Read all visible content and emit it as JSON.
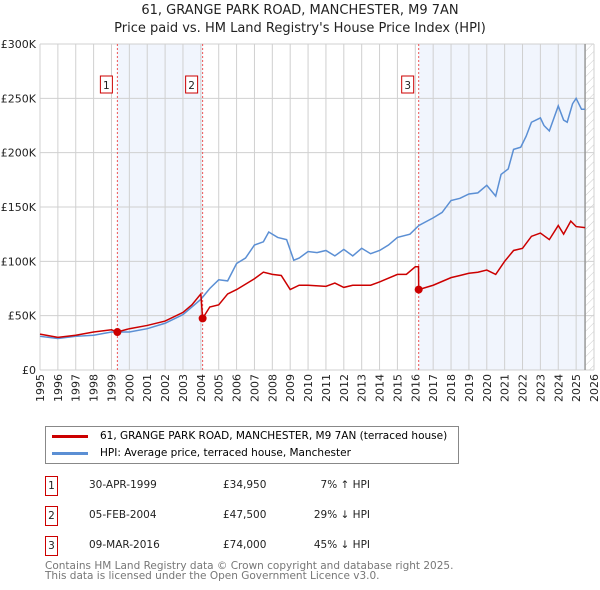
{
  "chart_data": {
    "type": "line",
    "title": "61, GRANGE PARK ROAD, MANCHESTER, M9 7AN",
    "subtitle": "Price paid vs. HM Land Registry's House Price Index (HPI)",
    "xlim": [
      1995,
      2026
    ],
    "ylim": [
      0,
      300000
    ],
    "x_ticks": [
      "1995",
      "1996",
      "1997",
      "1998",
      "1999",
      "2000",
      "2001",
      "2002",
      "2003",
      "2004",
      "2005",
      "2006",
      "2007",
      "2008",
      "2009",
      "2010",
      "2011",
      "2012",
      "2013",
      "2014",
      "2015",
      "2016",
      "2017",
      "2018",
      "2019",
      "2020",
      "2021",
      "2022",
      "2023",
      "2024",
      "2025",
      "2026"
    ],
    "y_ticks": [
      {
        "v": 0,
        "label": "£0"
      },
      {
        "v": 50000,
        "label": "£50K"
      },
      {
        "v": 100000,
        "label": "£100K"
      },
      {
        "v": 150000,
        "label": "£150K"
      },
      {
        "v": 200000,
        "label": "£200K"
      },
      {
        "v": 250000,
        "label": "£250K"
      },
      {
        "v": 300000,
        "label": "£300K"
      }
    ],
    "shaded_ranges": [
      [
        1999.33,
        2004.1
      ],
      [
        2016.19,
        2025.5
      ]
    ],
    "data_end": 2025.5,
    "series": [
      {
        "name": "61, GRANGE PARK ROAD, MANCHESTER, M9 7AN (terraced house)",
        "color": "#cc0000",
        "x": [
          1995,
          1996,
          1997,
          1998,
          1999,
          1999.33,
          2000,
          2001,
          2002,
          2003,
          2003.5,
          2004,
          2004.1,
          2004.5,
          2005,
          2005.5,
          2006,
          2007,
          2007.5,
          2008,
          2008.5,
          2009,
          2009.5,
          2010,
          2011,
          2011.5,
          2012,
          2012.5,
          2013,
          2013.5,
          2014,
          2015,
          2015.5,
          2016,
          2016.18,
          2016.19,
          2017,
          2018,
          2018.5,
          2019,
          2019.5,
          2020,
          2020.5,
          2021,
          2021.5,
          2022,
          2022.5,
          2023,
          2023.5,
          2024,
          2024.3,
          2024.7,
          2025,
          2025.5
        ],
        "y": [
          33000,
          30000,
          32000,
          35000,
          37000,
          34950,
          38000,
          41000,
          45000,
          53000,
          60000,
          70000,
          47500,
          58000,
          60000,
          70000,
          74000,
          84000,
          90000,
          88000,
          87000,
          74000,
          78000,
          78000,
          77000,
          80000,
          76000,
          78000,
          78000,
          78000,
          81000,
          88000,
          88000,
          95000,
          95000,
          74000,
          78000,
          85000,
          87000,
          89000,
          90000,
          92000,
          88000,
          100000,
          110000,
          112000,
          123000,
          126000,
          120000,
          133000,
          125000,
          137000,
          132000,
          131000
        ]
      },
      {
        "name": "HPI: Average price, terraced house, Manchester",
        "color": "#5b8fd4",
        "x": [
          1995,
          1996,
          1997,
          1998,
          1999,
          2000,
          2001,
          2002,
          2003,
          2004,
          2004.5,
          2005,
          2005.5,
          2006,
          2006.5,
          2007,
          2007.5,
          2007.8,
          2008.3,
          2008.8,
          2009.2,
          2009.5,
          2010,
          2010.5,
          2011,
          2011.5,
          2012,
          2012.5,
          2013,
          2013.5,
          2014,
          2014.5,
          2015,
          2015.7,
          2016.2,
          2017,
          2017.5,
          2018,
          2018.5,
          2019,
          2019.5,
          2020,
          2020.5,
          2020.8,
          2021.2,
          2021.5,
          2021.9,
          2022.2,
          2022.5,
          2023,
          2023.2,
          2023.5,
          2024,
          2024.3,
          2024.5,
          2024.8,
          2025,
          2025.3,
          2025.5
        ],
        "y": [
          31000,
          29000,
          31000,
          32000,
          35000,
          35000,
          38000,
          43000,
          51000,
          65000,
          75000,
          83000,
          82000,
          98000,
          103000,
          115000,
          118000,
          127000,
          122000,
          120000,
          101000,
          103000,
          109000,
          108000,
          110000,
          105000,
          111000,
          105000,
          112000,
          107000,
          110000,
          115000,
          122000,
          125000,
          133000,
          140000,
          145000,
          156000,
          158000,
          162000,
          163000,
          170000,
          160000,
          180000,
          185000,
          203000,
          205000,
          215000,
          228000,
          232000,
          225000,
          220000,
          243000,
          230000,
          228000,
          245000,
          250000,
          240000,
          240000
        ]
      }
    ],
    "sales": [
      {
        "id": "1",
        "x": 1999.33,
        "y": 34950,
        "date": "30-APR-1999",
        "price": "£34,950",
        "hpi": "7% ↑ HPI"
      },
      {
        "id": "2",
        "x": 2004.1,
        "y": 47500,
        "date": "05-FEB-2004",
        "price": "£47,500",
        "hpi": "29% ↓ HPI"
      },
      {
        "id": "3",
        "x": 2016.19,
        "y": 74000,
        "date": "09-MAR-2016",
        "price": "£74,000",
        "hpi": "45% ↓ HPI"
      }
    ]
  },
  "footer": {
    "line1": "Contains HM Land Registry data © Crown copyright and database right 2025.",
    "line2": "This data is licensed under the Open Government Licence v3.0."
  }
}
